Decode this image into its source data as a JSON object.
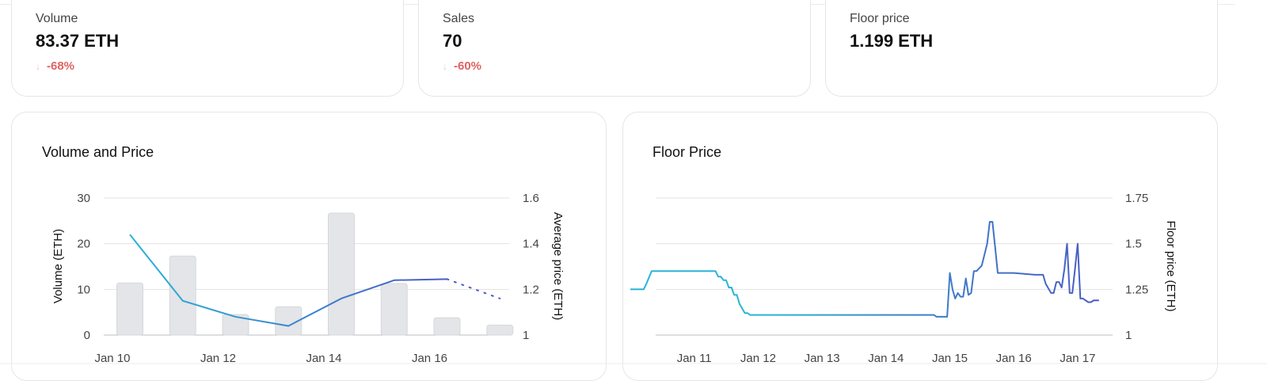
{
  "stats": [
    {
      "label": "Volume",
      "value": "83.37 ETH",
      "change": "-68%",
      "trend_icon": "arrow-down-icon"
    },
    {
      "label": "Sales",
      "value": "70",
      "change": "-60%",
      "trend_icon": "arrow-down-icon"
    },
    {
      "label": "Floor price",
      "value": "1.199 ETH"
    }
  ],
  "colors": {
    "bar": "#e3e5e8",
    "line_a": "#29b4d6",
    "line_b": "#4a5bc4",
    "negative": "#e06262",
    "grid": "#e3e3e3"
  },
  "chart_data": [
    {
      "type": "bar+line",
      "title": "Volume and Price",
      "ylabel": "Volume (ETH)",
      "y2label": "Average price (ETH)",
      "ylim": [
        0,
        30
      ],
      "y2lim": [
        1,
        1.6
      ],
      "xlim": [
        "2024-01-10",
        "2024-01-17"
      ],
      "x_ticks": [
        "Jan 10",
        "Jan 12",
        "Jan 14",
        "Jan 16"
      ],
      "x_tick_dates": [
        "2024-01-10",
        "2024-01-12",
        "2024-01-14",
        "2024-01-16"
      ],
      "y_ticks": [
        0,
        10,
        20,
        30
      ],
      "y2_ticks": [
        "1",
        "1.2",
        "1.4",
        "1.6"
      ],
      "grid": true,
      "bars": {
        "name": "Volume",
        "x": [
          "2024-01-10",
          "2024-01-11",
          "2024-01-12",
          "2024-01-13",
          "2024-01-14",
          "2024-01-15",
          "2024-01-16",
          "2024-01-17"
        ],
        "values": [
          11.4,
          17.3,
          4.5,
          6.2,
          26.7,
          11.3,
          3.8,
          2.2
        ]
      },
      "line": {
        "name": "Average price",
        "x": [
          "2024-01-10",
          "2024-01-11",
          "2024-01-12",
          "2024-01-13",
          "2024-01-14",
          "2024-01-15",
          "2024-01-16",
          "2024-01-17"
        ],
        "values": [
          1.44,
          1.15,
          1.08,
          1.04,
          1.16,
          1.24,
          1.245,
          1.16
        ],
        "dotted_last_segment": true
      }
    },
    {
      "type": "line",
      "title": "Floor Price",
      "y2label": "Floor price (ETH)",
      "y2lim": [
        1,
        1.75
      ],
      "xlim": [
        "2024-01-10",
        "2024-01-17"
      ],
      "x_ticks": [
        "Jan 11",
        "Jan 12",
        "Jan 13",
        "Jan 14",
        "Jan 15",
        "Jan 16",
        "Jan 17"
      ],
      "x_tick_dates": [
        "2024-01-11",
        "2024-01-12",
        "2024-01-13",
        "2024-01-14",
        "2024-01-15",
        "2024-01-16",
        "2024-01-17"
      ],
      "y2_ticks": [
        "1",
        "1.25",
        "1.5",
        "1.75"
      ],
      "grid": true,
      "series": [
        {
          "name": "Floor price",
          "x": [
            "2024-01-10 00:00",
            "2024-01-10 05:00",
            "2024-01-10 06:00",
            "2024-01-10 08:00",
            "2024-01-10 20:00",
            "2024-01-11 04:00",
            "2024-01-11 08:00",
            "2024-01-11 09:00",
            "2024-01-11 10:00",
            "2024-01-11 11:00",
            "2024-01-11 12:00",
            "2024-01-11 13:00",
            "2024-01-11 14:00",
            "2024-01-11 15:00",
            "2024-01-11 16:00",
            "2024-01-11 17:00",
            "2024-01-11 19:00",
            "2024-01-11 20:00",
            "2024-01-11 21:00",
            "2024-01-11 22:00",
            "2024-01-11 23:00",
            "2024-01-12 06:00",
            "2024-01-13 00:00",
            "2024-01-13 12:00",
            "2024-01-14 00:00",
            "2024-01-14 12:00",
            "2024-01-14 18:00",
            "2024-01-14 19:00",
            "2024-01-14 21:00",
            "2024-01-14 23:00",
            "2024-01-15 00:00",
            "2024-01-15 01:00",
            "2024-01-15 02:00",
            "2024-01-15 03:00",
            "2024-01-15 04:00",
            "2024-01-15 05:00",
            "2024-01-15 06:00",
            "2024-01-15 07:00",
            "2024-01-15 08:00",
            "2024-01-15 09:00",
            "2024-01-15 10:00",
            "2024-01-15 12:00",
            "2024-01-15 14:00",
            "2024-01-15 15:00",
            "2024-01-15 16:00",
            "2024-01-15 17:00",
            "2024-01-15 18:00",
            "2024-01-15 19:00",
            "2024-01-15 20:00",
            "2024-01-15 21:00",
            "2024-01-16 00:00",
            "2024-01-16 08:00",
            "2024-01-16 09:00",
            "2024-01-16 11:00",
            "2024-01-16 12:00",
            "2024-01-16 14:00",
            "2024-01-16 15:00",
            "2024-01-16 16:00",
            "2024-01-16 17:00",
            "2024-01-16 18:00",
            "2024-01-16 19:00",
            "2024-01-16 20:00",
            "2024-01-16 21:00",
            "2024-01-16 22:00",
            "2024-01-16 23:00",
            "2024-01-17 00:00",
            "2024-01-17 01:00",
            "2024-01-17 02:00",
            "2024-01-17 04:00",
            "2024-01-17 05:00",
            "2024-01-17 06:00",
            "2024-01-17 08:00"
          ],
          "values": [
            1.25,
            1.25,
            1.28,
            1.35,
            1.35,
            1.35,
            1.35,
            1.32,
            1.32,
            1.3,
            1.3,
            1.26,
            1.26,
            1.22,
            1.22,
            1.17,
            1.12,
            1.12,
            1.11,
            1.11,
            1.11,
            1.11,
            1.11,
            1.11,
            1.11,
            1.11,
            1.11,
            1.1,
            1.1,
            1.1,
            1.34,
            1.25,
            1.2,
            1.23,
            1.21,
            1.21,
            1.31,
            1.22,
            1.23,
            1.35,
            1.35,
            1.38,
            1.5,
            1.62,
            1.62,
            1.48,
            1.34,
            1.34,
            1.34,
            1.34,
            1.34,
            1.33,
            1.33,
            1.33,
            1.28,
            1.23,
            1.23,
            1.29,
            1.29,
            1.26,
            1.36,
            1.5,
            1.23,
            1.23,
            1.36,
            1.5,
            1.2,
            1.2,
            1.18,
            1.18,
            1.19,
            1.19
          ]
        }
      ]
    }
  ]
}
